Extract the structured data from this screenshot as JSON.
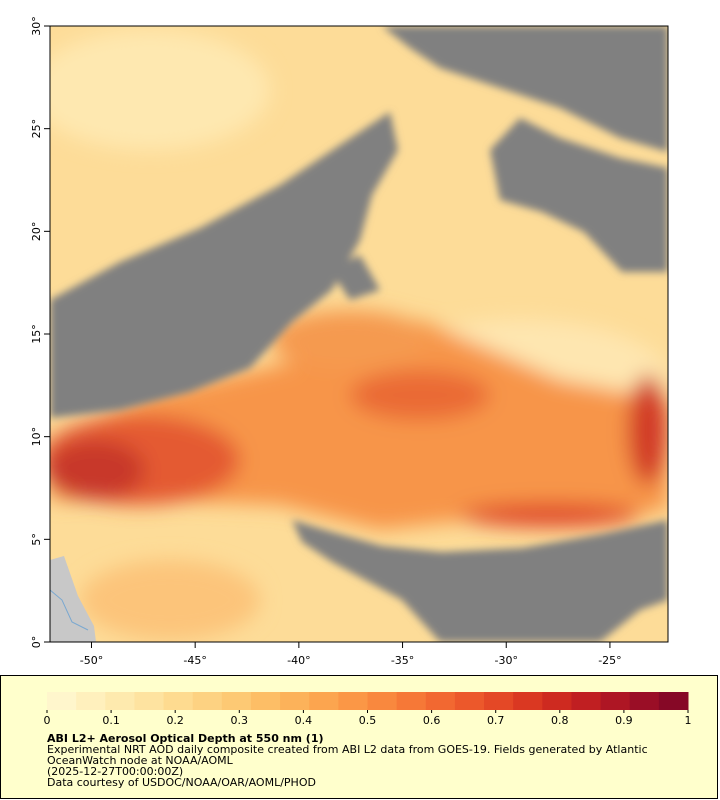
{
  "map": {
    "xlim": [
      -52,
      -22.2
    ],
    "ylim": [
      0,
      30
    ],
    "xticks": [
      {
        "value": -50,
        "label": "-50°"
      },
      {
        "value": -45,
        "label": "-45°"
      },
      {
        "value": -40,
        "label": "-40°"
      },
      {
        "value": -35,
        "label": "-35°"
      },
      {
        "value": -30,
        "label": "-30°"
      },
      {
        "value": -25,
        "label": "-25°"
      }
    ],
    "yticks": [
      {
        "value": 0,
        "label": "0°"
      },
      {
        "value": 5,
        "label": "5°"
      },
      {
        "value": 10,
        "label": "10°"
      },
      {
        "value": 15,
        "label": "15°"
      },
      {
        "value": 20,
        "label": "20°"
      },
      {
        "value": 25,
        "label": "25°"
      },
      {
        "value": 30,
        "label": "30°"
      }
    ]
  },
  "colorbar": {
    "lim": [
      0,
      1
    ],
    "ticks": [
      0,
      0.1,
      0.2,
      0.3,
      0.4,
      0.5,
      0.6,
      0.7,
      0.8,
      0.9,
      1
    ],
    "colors": [
      "#fff6cc",
      "#fff0bd",
      "#feeaae",
      "#fee3a0",
      "#fedb90",
      "#fdd282",
      "#fdc974",
      "#fdbe66",
      "#fcb25a",
      "#fca54f",
      "#fb9746",
      "#f9883e",
      "#f67837",
      "#f26831",
      "#ec582b",
      "#e44826",
      "#da3822",
      "#ce2a20",
      "#c01f22",
      "#ae1624",
      "#9a0e26",
      "#860826"
    ]
  },
  "caption": {
    "title": "ABI L2+ Aerosol Optical Depth at 550 nm (1)",
    "lines": [
      "Experimental NRT AOD daily composite created from ABI L2 data from GOES-19. Fields generated by Atlantic",
      "OceanWatch node at NOAA/AOML",
      "(2025-12-27T00:00:00Z)",
      "Data courtesy of USDOC/NOAA/OAR/AOML/PHOD"
    ]
  }
}
